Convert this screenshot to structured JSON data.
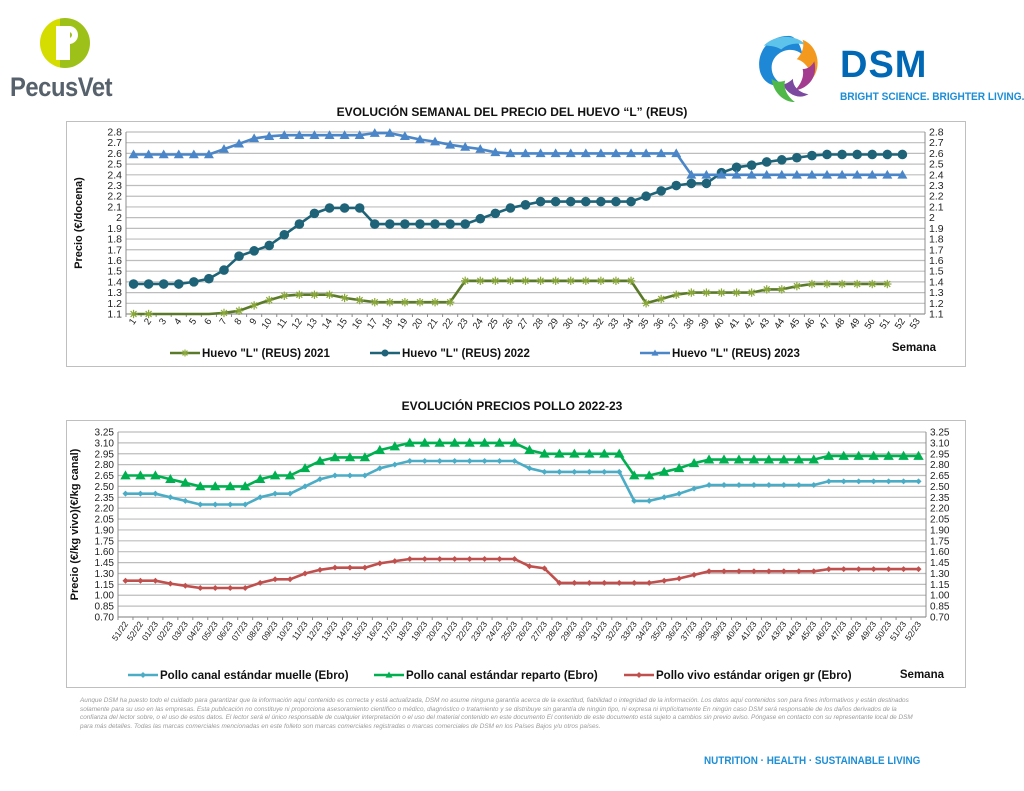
{
  "header": {
    "left_logo": {
      "text": "PecusVet",
      "icon": "pecusvet-p-logo-icon",
      "colors": [
        "#d5dc00",
        "#9ec11a",
        "#56616b"
      ]
    },
    "right_logo": {
      "text": "DSM",
      "tagline": "BRIGHT SCIENCE. BRIGHTER LIVING.",
      "icon": "dsm-swirl-logo-icon",
      "colors": [
        "#0068b4",
        "#1c8ed6"
      ]
    }
  },
  "chart_data": [
    {
      "type": "line",
      "title": "EVOLUCIÓN SEMANAL DEL PRECIO DEL HUEVO “L” (REUS)",
      "xlabel": "Semana",
      "ylabel": "Precio (€/docena)",
      "ylim": [
        1.1,
        2.8
      ],
      "yticks": [
        "1.1",
        "1.2",
        "1.3",
        "1.4",
        "1.5",
        "1.6",
        "1.7",
        "1.8",
        "1.9",
        "2",
        "2.1",
        "2.2",
        "2.3",
        "2.4",
        "2.5",
        "2.6",
        "2.7",
        "2.8"
      ],
      "categories": [
        "1",
        "2",
        "3",
        "4",
        "5",
        "6",
        "7",
        "8",
        "9",
        "10",
        "11",
        "12",
        "13",
        "14",
        "15",
        "16",
        "17",
        "18",
        "19",
        "20",
        "21",
        "22",
        "23",
        "24",
        "25",
        "26",
        "27",
        "28",
        "29",
        "30",
        "31",
        "32",
        "33",
        "34",
        "35",
        "36",
        "37",
        "38",
        "39",
        "40",
        "41",
        "42",
        "43",
        "44",
        "45",
        "46",
        "47",
        "48",
        "49",
        "50",
        "51",
        "52",
        "53"
      ],
      "grid": true,
      "dual_y_axis": true,
      "legend_position": "bottom",
      "series": [
        {
          "name": "Huevo \"L\" (REUS) 2021",
          "color": "#5a7a2a",
          "marker": "asterisk",
          "values": [
            1.1,
            1.1,
            1.06,
            1.05,
            1.08,
            1.09,
            1.11,
            1.13,
            1.18,
            1.23,
            1.27,
            1.28,
            1.28,
            1.28,
            1.25,
            1.23,
            1.21,
            1.21,
            1.21,
            1.21,
            1.21,
            1.21,
            1.41,
            1.41,
            1.41,
            1.41,
            1.41,
            1.41,
            1.41,
            1.41,
            1.41,
            1.41,
            1.41,
            1.41,
            1.2,
            1.24,
            1.28,
            1.3,
            1.3,
            1.3,
            1.3,
            1.3,
            1.33,
            1.33,
            1.36,
            1.38,
            1.38,
            1.38,
            1.38,
            1.38,
            1.38,
            null,
            null
          ]
        },
        {
          "name": "Huevo \"L\" (REUS) 2022",
          "color": "#1e6377",
          "marker": "circle",
          "values": [
            1.38,
            1.38,
            1.38,
            1.38,
            1.4,
            1.43,
            1.51,
            1.64,
            1.69,
            1.74,
            1.84,
            1.94,
            2.04,
            2.09,
            2.09,
            2.09,
            1.94,
            1.94,
            1.94,
            1.94,
            1.94,
            1.94,
            1.94,
            1.99,
            2.04,
            2.09,
            2.12,
            2.15,
            2.15,
            2.15,
            2.15,
            2.15,
            2.15,
            2.15,
            2.2,
            2.25,
            2.3,
            2.32,
            2.32,
            2.42,
            2.47,
            2.49,
            2.52,
            2.54,
            2.56,
            2.58,
            2.59,
            2.59,
            2.59,
            2.59,
            2.59,
            2.59,
            null
          ]
        },
        {
          "name": "Huevo \"L\" (REUS) 2023",
          "color": "#4a86c8",
          "marker": "triangle",
          "values": [
            2.59,
            2.59,
            2.59,
            2.59,
            2.59,
            2.59,
            2.64,
            2.69,
            2.74,
            2.76,
            2.77,
            2.77,
            2.77,
            2.77,
            2.77,
            2.77,
            2.79,
            2.79,
            2.76,
            2.73,
            2.71,
            2.68,
            2.66,
            2.64,
            2.61,
            2.6,
            2.6,
            2.6,
            2.6,
            2.6,
            2.6,
            2.6,
            2.6,
            2.6,
            2.6,
            2.6,
            2.6,
            2.4,
            2.4,
            2.4,
            2.4,
            2.4,
            2.4,
            2.4,
            2.4,
            2.4,
            2.4,
            2.4,
            2.4,
            2.4,
            2.4,
            2.4,
            null
          ]
        }
      ]
    },
    {
      "type": "line",
      "title": "EVOLUCIÓN PRECIOS POLLO 2022-23",
      "xlabel": "Semana",
      "ylabel": "Precio (€/kg vivo)(€/kg canal)",
      "ylim": [
        0.7,
        3.25
      ],
      "yticks": [
        "0.70",
        "0.85",
        "1.00",
        "1.15",
        "1.30",
        "1.45",
        "1.60",
        "1.75",
        "1.90",
        "2.05",
        "2.20",
        "2.35",
        "2.50",
        "2.65",
        "2.80",
        "2.95",
        "3.10",
        "3.25"
      ],
      "categories": [
        "51/22",
        "52/22",
        "01/23",
        "02/23",
        "03/23",
        "04/23",
        "05/23",
        "06/23",
        "07/23",
        "08/23",
        "09/23",
        "10/23",
        "11/23",
        "12/23",
        "13/23",
        "14/23",
        "15/23",
        "16/23",
        "17/23",
        "18/23",
        "19/23",
        "20/23",
        "21/23",
        "22/23",
        "23/23",
        "24/23",
        "25/23",
        "26/23",
        "27/23",
        "28/23",
        "29/23",
        "30/23",
        "31/23",
        "32/23",
        "33/23",
        "34/23",
        "35/23",
        "36/23",
        "37/23",
        "38/23",
        "39/23",
        "40/23",
        "41/23",
        "42/23",
        "43/23",
        "44/23",
        "45/23",
        "46/23",
        "47/23",
        "48/23",
        "49/23",
        "50/23",
        "51/23",
        "52/23"
      ],
      "grid": true,
      "dual_y_axis": true,
      "legend_position": "bottom",
      "series": [
        {
          "name": "Pollo canal estándar muelle (Ebro)",
          "color": "#4bacc6",
          "marker": "diamond",
          "values": [
            2.4,
            2.4,
            2.4,
            2.35,
            2.3,
            2.25,
            2.25,
            2.25,
            2.25,
            2.35,
            2.4,
            2.4,
            2.5,
            2.6,
            2.65,
            2.65,
            2.65,
            2.75,
            2.8,
            2.85,
            2.85,
            2.85,
            2.85,
            2.85,
            2.85,
            2.85,
            2.85,
            2.75,
            2.7,
            2.7,
            2.7,
            2.7,
            2.7,
            2.7,
            2.3,
            2.3,
            2.35,
            2.4,
            2.47,
            2.52,
            2.52,
            2.52,
            2.52,
            2.52,
            2.52,
            2.52,
            2.52,
            2.57,
            2.57,
            2.57,
            2.57,
            2.57,
            2.57,
            2.57
          ]
        },
        {
          "name": "Pollo canal estándar reparto (Ebro)",
          "color": "#00b050",
          "marker": "triangle",
          "values": [
            2.65,
            2.65,
            2.65,
            2.6,
            2.55,
            2.5,
            2.5,
            2.5,
            2.5,
            2.6,
            2.65,
            2.65,
            2.75,
            2.85,
            2.9,
            2.9,
            2.9,
            3.0,
            3.05,
            3.1,
            3.1,
            3.1,
            3.1,
            3.1,
            3.1,
            3.1,
            3.1,
            3.0,
            2.95,
            2.95,
            2.95,
            2.95,
            2.95,
            2.95,
            2.65,
            2.65,
            2.7,
            2.75,
            2.82,
            2.87,
            2.87,
            2.87,
            2.87,
            2.87,
            2.87,
            2.87,
            2.87,
            2.92,
            2.92,
            2.92,
            2.92,
            2.92,
            2.92,
            2.92
          ]
        },
        {
          "name": "Pollo vivo estándar origen gr (Ebro)",
          "color": "#c0504d",
          "marker": "diamond",
          "values": [
            1.2,
            1.2,
            1.2,
            1.16,
            1.13,
            1.1,
            1.1,
            1.1,
            1.1,
            1.17,
            1.22,
            1.22,
            1.3,
            1.35,
            1.38,
            1.38,
            1.38,
            1.44,
            1.47,
            1.5,
            1.5,
            1.5,
            1.5,
            1.5,
            1.5,
            1.5,
            1.5,
            1.4,
            1.37,
            1.17,
            1.17,
            1.17,
            1.17,
            1.17,
            1.17,
            1.17,
            1.2,
            1.23,
            1.28,
            1.33,
            1.33,
            1.33,
            1.33,
            1.33,
            1.33,
            1.33,
            1.33,
            1.36,
            1.36,
            1.36,
            1.36,
            1.36,
            1.36,
            1.36
          ]
        }
      ]
    }
  ],
  "footer": {
    "disclaimer": "Aunque DSM ha puesto todo el cuidado para garantizar que la información aquí contenido es correcta y está actualizada, DSM no asume ninguna garantía acerca de la exactitud, fiabilidad o integridad de la información. Los datos aquí contenidos son para fines informativos y están destinados solamente para su uso en las empresas. Esta publicación no constituye ni proporciona asesoramiento científico o médico, diagnóstico o tratamiento y se distribuye sin garantía de ningún tipo, ni expresa ni implícitamente En ningún caso DSM será responsable de los daños derivados de la confianza del lector sobre, o el uso de estos datos. El lector será el único responsable de cualquier interpretación o el uso del material contenido en este documento El contenido de este documento está sujeto a cambios sin previo aviso. Póngase en contacto con su representante local de DSM para más detalles. Todas las marcas comerciales mencionadas en este folleto son marcas comerciales registradas o marcas comerciales de DSM en los Países Bajos y/u otros países.",
    "tagline": "NUTRITION · HEALTH · SUSTAINABLE LIVING"
  }
}
